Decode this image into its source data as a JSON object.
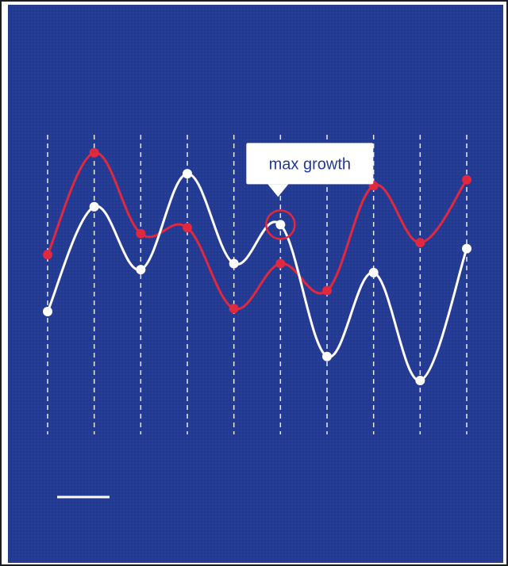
{
  "colors": {
    "background": "#233a93",
    "series_red": "#e0283f",
    "series_white": "#ffffff",
    "callout_bg": "#ffffff",
    "callout_text": "#233a93"
  },
  "chart_data": {
    "type": "line",
    "x": [
      1,
      2,
      3,
      4,
      5,
      6,
      7,
      8,
      9,
      10
    ],
    "ylim": [
      0,
      100
    ],
    "xlim": [
      1,
      10
    ],
    "grid": "vertical-dashed",
    "smooth": true,
    "title": "",
    "xlabel": "",
    "ylabel": "",
    "series": [
      {
        "color": "#e0283f",
        "values": [
          60,
          94,
          67,
          69,
          42,
          57,
          48,
          83,
          64,
          85
        ]
      },
      {
        "color": "#ffffff",
        "values": [
          41,
          76,
          55,
          87,
          57,
          70,
          26,
          54,
          18,
          62
        ]
      }
    ],
    "annotations": [
      {
        "text": "max growth",
        "series": 1,
        "index": 5
      }
    ]
  }
}
